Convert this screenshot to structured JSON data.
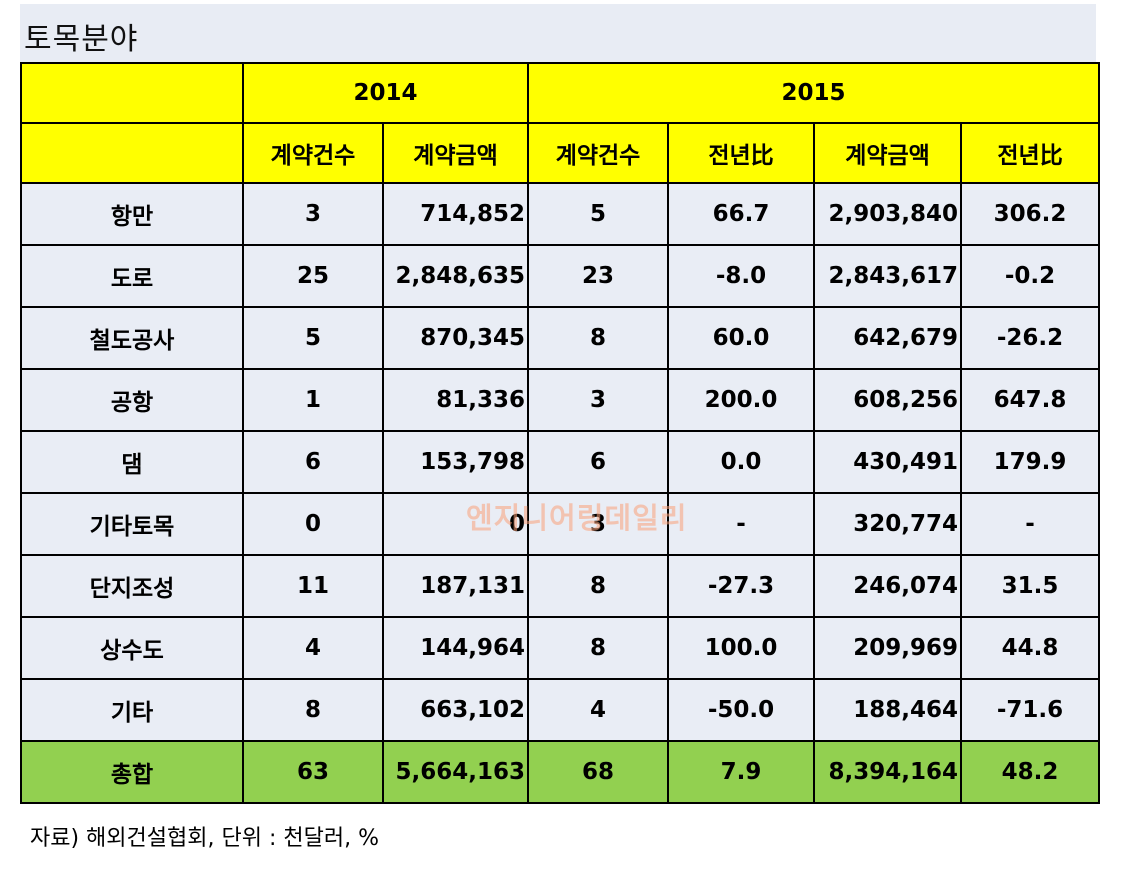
{
  "title": "토목분야",
  "years": [
    "2014",
    "2015"
  ],
  "subheaders": [
    "계약건수",
    "계약금액",
    "계약건수",
    "전년",
    "계약금액",
    "전년"
  ],
  "hanja_suffix": "比",
  "rows": [
    {
      "label": "항만",
      "c14": "3",
      "a14": "714,852",
      "c15": "5",
      "r1": "66.7",
      "a15": "2,903,840",
      "r2": "306.2"
    },
    {
      "label": "도로",
      "c14": "25",
      "a14": "2,848,635",
      "c15": "23",
      "r1": "-8.0",
      "a15": "2,843,617",
      "r2": "-0.2"
    },
    {
      "label": "철도공사",
      "c14": "5",
      "a14": "870,345",
      "c15": "8",
      "r1": "60.0",
      "a15": "642,679",
      "r2": "-26.2"
    },
    {
      "label": "공항",
      "c14": "1",
      "a14": "81,336",
      "c15": "3",
      "r1": "200.0",
      "a15": "608,256",
      "r2": "647.8"
    },
    {
      "label": "댐",
      "c14": "6",
      "a14": "153,798",
      "c15": "6",
      "r1": "0.0",
      "a15": "430,491",
      "r2": "179.9"
    },
    {
      "label": "기타토목",
      "c14": "0",
      "a14": "0",
      "c15": "3",
      "r1": "-",
      "a15": "320,774",
      "r2": "-"
    },
    {
      "label": "단지조성",
      "c14": "11",
      "a14": "187,131",
      "c15": "8",
      "r1": "-27.3",
      "a15": "246,074",
      "r2": "31.5"
    },
    {
      "label": "상수도",
      "c14": "4",
      "a14": "144,964",
      "c15": "8",
      "r1": "100.0",
      "a15": "209,969",
      "r2": "44.8"
    },
    {
      "label": "기타",
      "c14": "8",
      "a14": "663,102",
      "c15": "4",
      "r1": "-50.0",
      "a15": "188,464",
      "r2": "-71.6"
    }
  ],
  "total": {
    "label": "총합",
    "c14": "63",
    "a14": "5,664,163",
    "c15": "68",
    "r1": "7.9",
    "a15": "8,394,164",
    "r2": "48.2"
  },
  "watermark": "엔지니어링데일리",
  "source": "자료) 해외건설협회, 단위 : 천달러, %"
}
